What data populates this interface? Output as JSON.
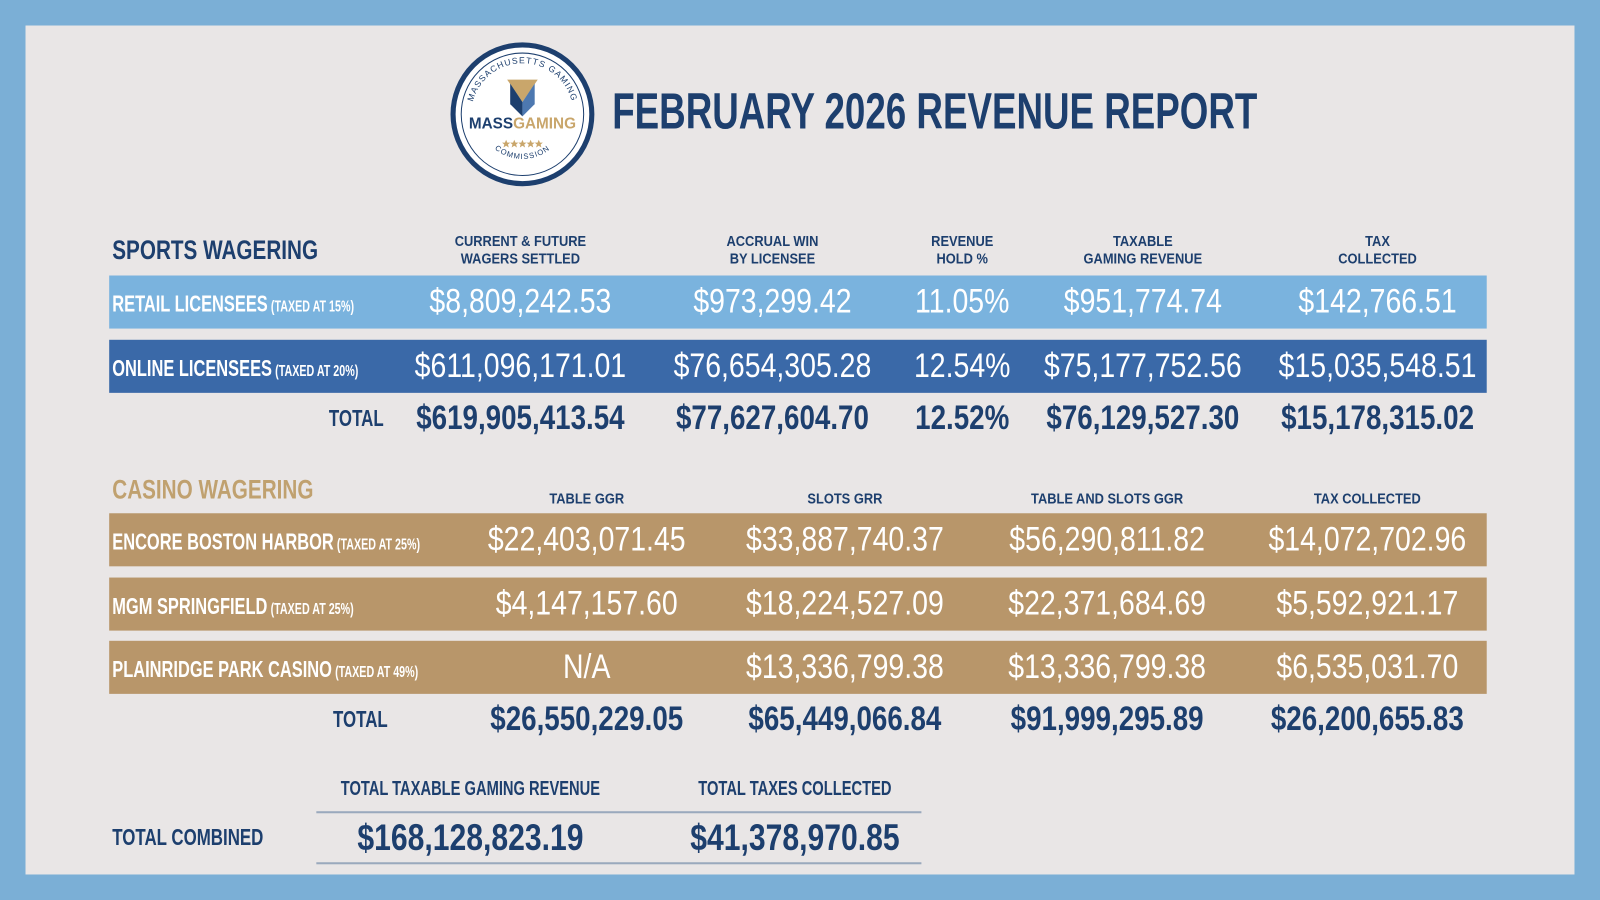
{
  "header": {
    "title": "FEBRUARY 2026 REVENUE REPORT"
  },
  "logo": {
    "arc_top": "MASSACHUSETTS GAMING",
    "name_left": "MASS",
    "name_right": "GAMING",
    "arc_bottom": "COMMISSION"
  },
  "sports": {
    "title": "SPORTS WAGERING",
    "columns": [
      [
        "CURRENT & FUTURE",
        "WAGERS SETTLED"
      ],
      [
        "ACCRUAL WIN",
        "BY LICENSEE"
      ],
      [
        "REVENUE",
        "HOLD %"
      ],
      [
        "TAXABLE",
        "GAMING REVENUE"
      ],
      [
        "TAX",
        "COLLECTED"
      ]
    ],
    "rows": [
      {
        "label": "RETAIL LICENSEES",
        "note": "(TAXED AT 15%)",
        "cells": [
          "$8,809,242.53",
          "$973,299.42",
          "11.05%",
          "$951,774.74",
          "$142,766.51"
        ]
      },
      {
        "label": "ONLINE LICENSEES",
        "note": "(TAXED AT 20%)",
        "cells": [
          "$611,096,171.01",
          "$76,654,305.28",
          "12.54%",
          "$75,177,752.56",
          "$15,035,548.51"
        ]
      }
    ],
    "total": {
      "label": "TOTAL",
      "cells": [
        "$619,905,413.54",
        "$77,627,604.70",
        "12.52%",
        "$76,129,527.30",
        "$15,178,315.02"
      ]
    }
  },
  "casino": {
    "title": "CASINO WAGERING",
    "columns": [
      "TABLE GGR",
      "SLOTS GRR",
      "TABLE AND SLOTS GGR",
      "TAX COLLECTED"
    ],
    "rows": [
      {
        "label": "ENCORE BOSTON HARBOR",
        "note": "(TAXED AT 25%)",
        "cells": [
          "$22,403,071.45",
          "$33,887,740.37",
          "$56,290,811.82",
          "$14,072,702.96"
        ]
      },
      {
        "label": "MGM SPRINGFIELD",
        "note": "(TAXED AT 25%)",
        "cells": [
          "$4,147,157.60",
          "$18,224,527.09",
          "$22,371,684.69",
          "$5,592,921.17"
        ]
      },
      {
        "label": "PLAINRIDGE PARK CASINO",
        "note": "(TAXED AT 49%)",
        "cells": [
          "N/A",
          "$13,336,799.38",
          "$13,336,799.38",
          "$6,535,031.70"
        ]
      }
    ],
    "total": {
      "label": "TOTAL",
      "cells": [
        "$26,550,229.05",
        "$65,449,066.84",
        "$91,999,295.89",
        "$26,200,655.83"
      ]
    }
  },
  "combined": {
    "label": "TOTAL COMBINED",
    "columns": [
      "TOTAL TAXABLE GAMING REVENUE",
      "TOTAL TAXES COLLECTED"
    ],
    "cells": [
      "$168,128,823.19",
      "$41,378,970.85"
    ]
  }
}
